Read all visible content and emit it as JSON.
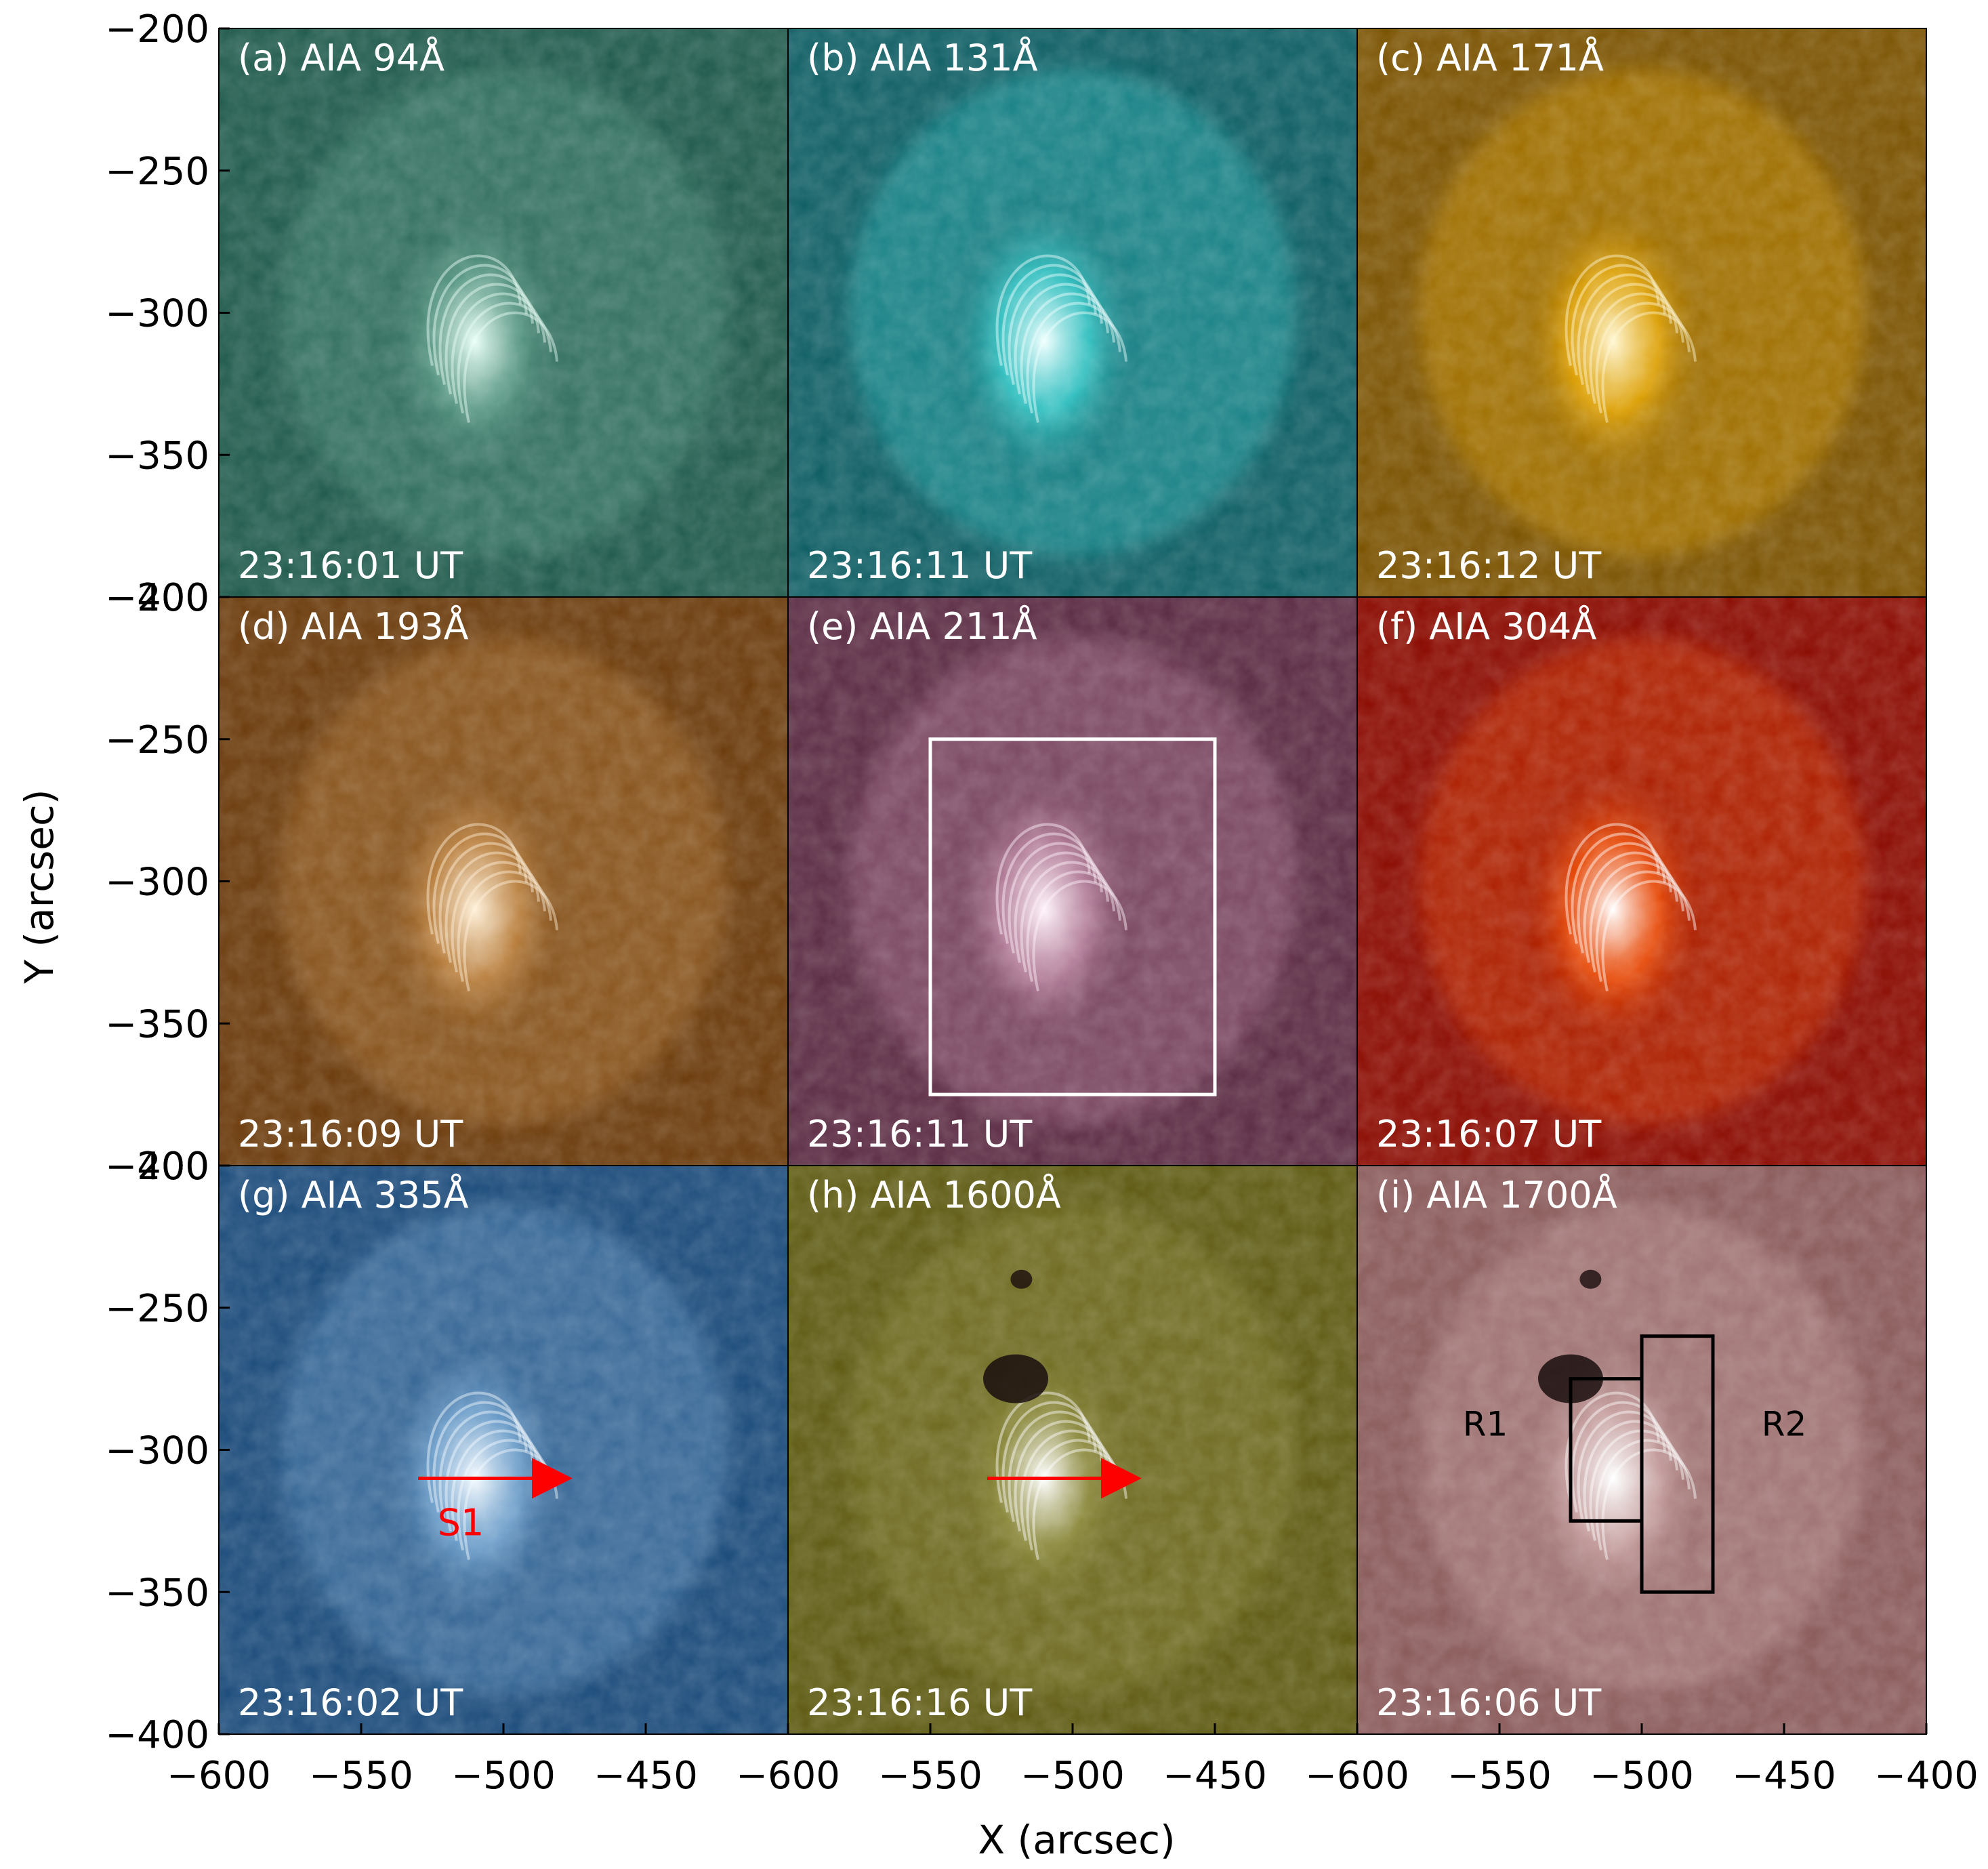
{
  "figure": {
    "x_axis_label": "X (arcsec)",
    "y_axis_label": "Y (arcsec)",
    "x_range": [
      -600,
      -400
    ],
    "y_range": [
      -400,
      -200
    ],
    "x_tick_labels": [
      "−600",
      "−550",
      "−500",
      "−450"
    ],
    "x_tick_labels_last": [
      "−600",
      "−550",
      "−500",
      "−450",
      "−400"
    ],
    "y_tick_labels": [
      "−200",
      "−250",
      "−300",
      "−350",
      "−400"
    ]
  },
  "panels": [
    {
      "label": "(a) AIA 94Å",
      "time": "23:16:01 UT",
      "base": "#1f5a4c",
      "bright": "#e8fff6",
      "mid": "#5a9a86"
    },
    {
      "label": "(b) AIA 131Å",
      "time": "23:16:11 UT",
      "base": "#0e5e64",
      "bright": "#f0ffff",
      "mid": "#2fc7c7"
    },
    {
      "label": "(c) AIA 171Å",
      "time": "23:16:12 UT",
      "base": "#7a5200",
      "bright": "#fff6d0",
      "mid": "#e6a600"
    },
    {
      "label": "(d) AIA 193Å",
      "time": "23:16:09 UT",
      "base": "#6a3a0a",
      "bright": "#fff0d8",
      "mid": "#c08440"
    },
    {
      "label": "(e) AIA 211Å",
      "time": "23:16:11 UT",
      "base": "#5a2a42",
      "bright": "#fff2fa",
      "mid": "#b77f9c"
    },
    {
      "label": "(f) AIA 304Å",
      "time": "23:16:07 UT",
      "base": "#8a0a00",
      "bright": "#ffffff",
      "mid": "#f04a00"
    },
    {
      "label": "(g) AIA 335Å",
      "time": "23:16:02 UT",
      "base": "#1a4a7a",
      "bright": "#f4faff",
      "mid": "#6fa2cf"
    },
    {
      "label": "(h) AIA 1600Å",
      "time": "23:16:16 UT",
      "base": "#5e5a12",
      "bright": "#ffffff",
      "mid": "#8c8a3a"
    },
    {
      "label": "(i) AIA 1700Å",
      "time": "23:16:06 UT",
      "base": "#8a5a5a",
      "bright": "#ffffff",
      "mid": "#c8a0a0"
    }
  ],
  "annotations": {
    "s1_label": "S1",
    "r1_label": "R1",
    "r2_label": "R2",
    "arrow_color": "#ff0000",
    "box_e_color": "#ffffff",
    "box_i_color": "#000000"
  }
}
